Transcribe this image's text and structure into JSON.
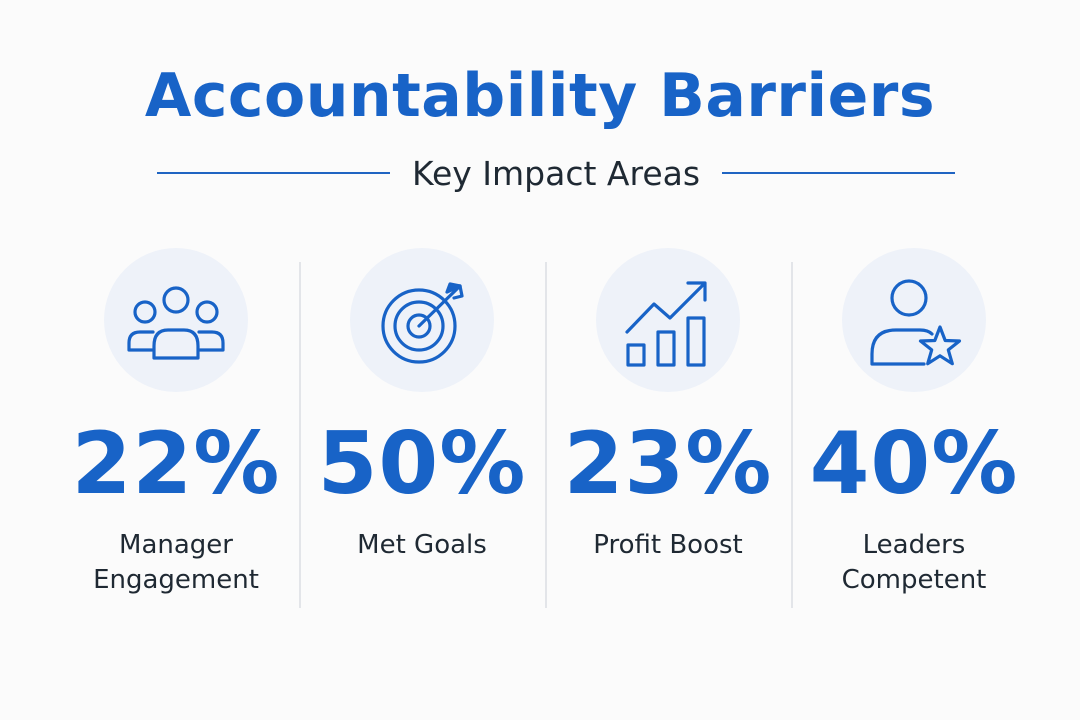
{
  "title": "Accountability Barriers",
  "subtitle": "Key Impact Areas",
  "colors": {
    "accent": "#1863c7",
    "text": "#1f2933",
    "icon_bg": "#eef2f9",
    "background": "#fbfbfb"
  },
  "stats": [
    {
      "icon": "team-icon",
      "value": "22%",
      "label_line1": "Manager",
      "label_line2": "Engagement"
    },
    {
      "icon": "target-icon",
      "value": "50%",
      "label_line1": "Met Goals",
      "label_line2": ""
    },
    {
      "icon": "growth-chart-icon",
      "value": "23%",
      "label_line1": "Profit Boost",
      "label_line2": ""
    },
    {
      "icon": "user-star-icon",
      "value": "40%",
      "label_line1": "Leaders",
      "label_line2": "Competent"
    }
  ]
}
